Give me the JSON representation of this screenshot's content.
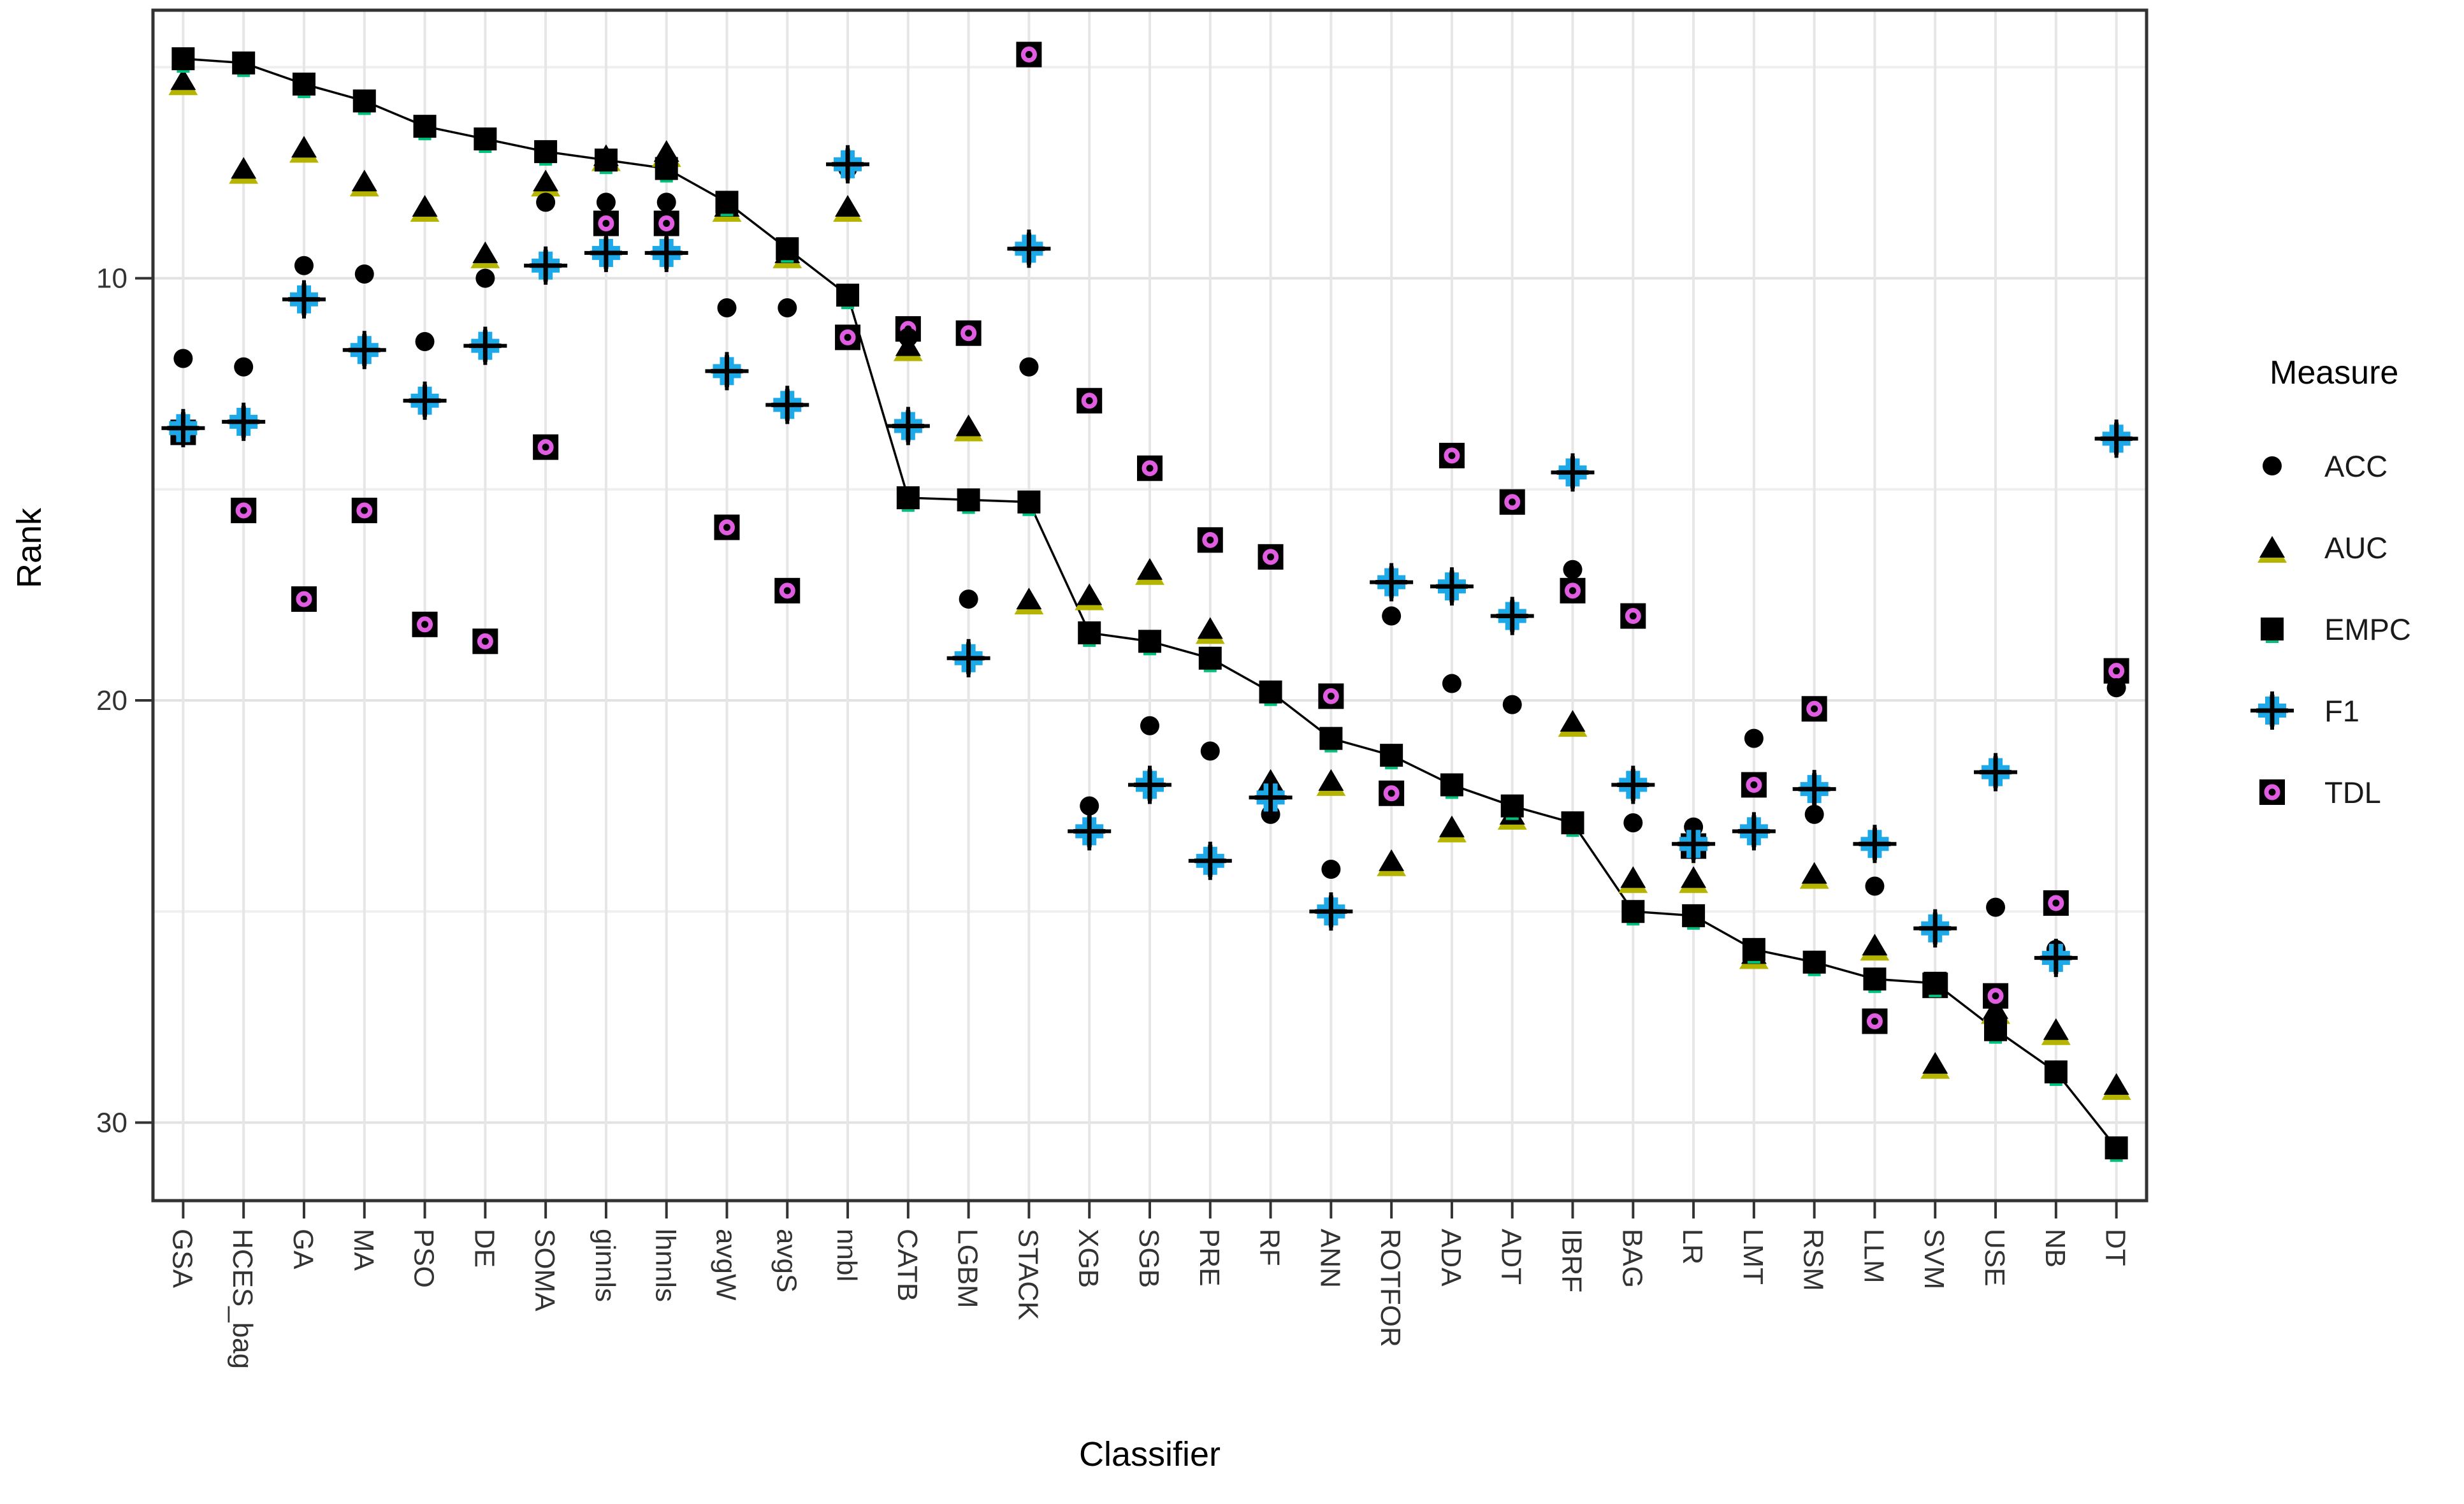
{
  "chart_data": {
    "type": "scatter",
    "title": "",
    "xlabel": "Classifier",
    "ylabel": "Rank",
    "legend_title": "Measure",
    "legend_position": "right",
    "grid": {
      "major_color": "#e2e2e2",
      "minor_color": "#efefef",
      "vertical_color": "#e6e6e6"
    },
    "panel": {
      "border_color": "#333333",
      "background": "#ffffff",
      "line_color": "#000000"
    },
    "y_axis": {
      "ticks": [
        10,
        20,
        30
      ],
      "minor_ticks": [
        5,
        15,
        25
      ],
      "top_value": 3.65,
      "bottom_value": 31.85,
      "reversed": true
    },
    "categories": [
      "GSA",
      "HCES_bag",
      "GA",
      "MA",
      "PSO",
      "DE",
      "SOMA",
      "ginnls",
      "lhnnls",
      "avgW",
      "avgS",
      "nnbl",
      "CATB",
      "LGBM",
      "STACK",
      "XGB",
      "SGB",
      "PRE",
      "RF",
      "ANN",
      "ROTFOR",
      "ADA",
      "ADT",
      "IBRF",
      "BAG",
      "LR",
      "LMT",
      "RSM",
      "LLM",
      "SVM",
      "USE",
      "NB",
      "DT"
    ],
    "series": [
      {
        "name": "ACC",
        "marker": "circle",
        "color": "#000000",
        "accent": "#000000",
        "values": [
          11.9,
          12.1,
          9.7,
          9.9,
          11.5,
          10.0,
          8.2,
          8.2,
          8.2,
          10.7,
          10.7,
          7.4,
          11.4,
          17.6,
          12.1,
          22.5,
          20.6,
          21.2,
          22.7,
          24.0,
          18.0,
          19.6,
          20.1,
          16.9,
          22.9,
          23.0,
          20.9,
          22.7,
          24.4,
          26.7,
          24.9,
          25.9,
          19.7
        ]
      },
      {
        "name": "AUC",
        "marker": "triangle",
        "color": "#000000",
        "accent": "#b5b400",
        "values": [
          5.3,
          7.4,
          6.9,
          7.7,
          8.3,
          9.4,
          7.7,
          7.1,
          7.0,
          8.3,
          9.4,
          8.3,
          11.6,
          13.5,
          17.6,
          17.5,
          16.9,
          18.3,
          21.9,
          21.9,
          23.8,
          23.0,
          22.7,
          20.5,
          24.2,
          24.2,
          26.0,
          24.1,
          25.8,
          28.6,
          27.3,
          27.8,
          29.1
        ]
      },
      {
        "name": "EMPC",
        "marker": "square",
        "color": "#000000",
        "accent": "#00c27d",
        "connect_line": true,
        "values": [
          4.8,
          4.9,
          5.4,
          5.8,
          6.4,
          6.7,
          7.0,
          7.2,
          7.4,
          8.2,
          9.3,
          10.4,
          15.2,
          15.25,
          15.3,
          18.4,
          18.6,
          19.0,
          19.8,
          20.9,
          21.3,
          22.0,
          22.5,
          22.9,
          25.0,
          25.1,
          25.9,
          26.2,
          26.6,
          26.7,
          27.8,
          28.8,
          30.6
        ]
      },
      {
        "name": "F1",
        "marker": "cross",
        "color": "#000000",
        "accent": "#1da8e8",
        "values": [
          13.55,
          13.4,
          10.5,
          11.7,
          12.9,
          11.6,
          9.7,
          9.4,
          9.4,
          12.2,
          13.0,
          7.3,
          13.5,
          19.0,
          9.3,
          23.1,
          22.0,
          23.8,
          22.3,
          25.0,
          17.2,
          17.3,
          18.0,
          14.6,
          22.0,
          23.4,
          23.1,
          22.1,
          23.4,
          25.4,
          21.7,
          26.1,
          13.8
        ]
      },
      {
        "name": "TDL",
        "marker": "square-ring",
        "color": "#000000",
        "accent": "#e05ce0",
        "values": [
          13.65,
          15.5,
          17.6,
          15.5,
          18.2,
          18.6,
          14.0,
          8.7,
          8.7,
          15.9,
          17.4,
          11.4,
          11.2,
          11.3,
          4.7,
          12.9,
          14.5,
          16.2,
          16.6,
          19.9,
          22.2,
          14.2,
          15.3,
          17.4,
          18.0,
          23.45,
          22.0,
          20.2,
          27.6,
          26.75,
          27.0,
          24.8,
          19.3
        ]
      }
    ]
  }
}
